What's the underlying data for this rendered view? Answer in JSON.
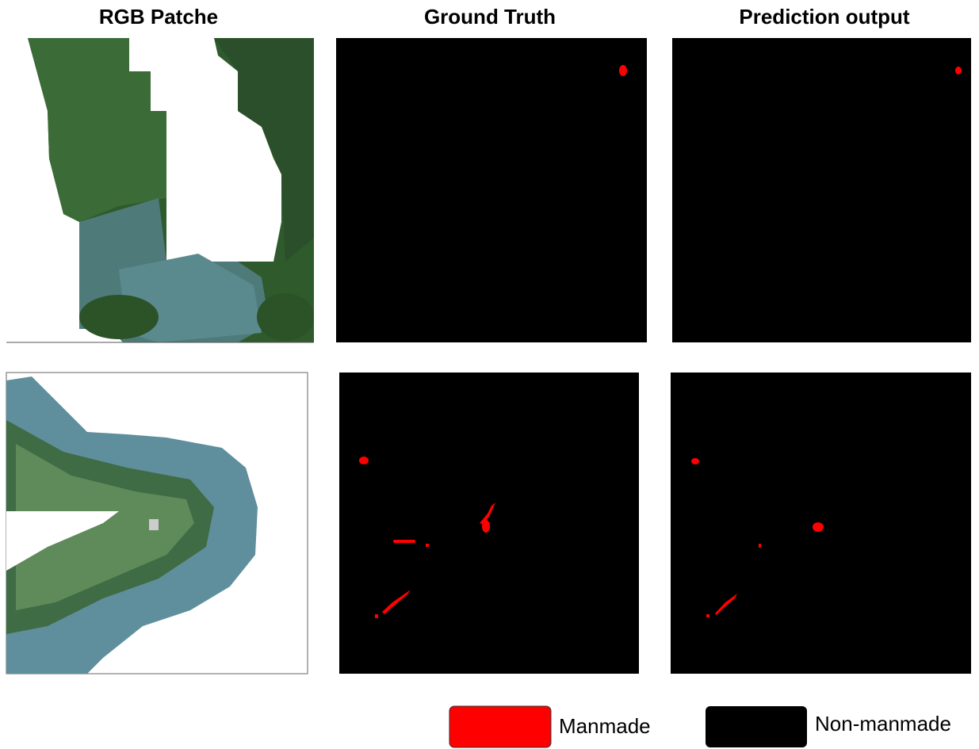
{
  "columns": [
    "RGB Patche",
    "Ground Truth",
    "Prediction output"
  ],
  "legend": [
    {
      "label": "Manmade",
      "color": "#ff0000"
    },
    {
      "label": "Non-manmade",
      "color": "#000000"
    }
  ]
}
